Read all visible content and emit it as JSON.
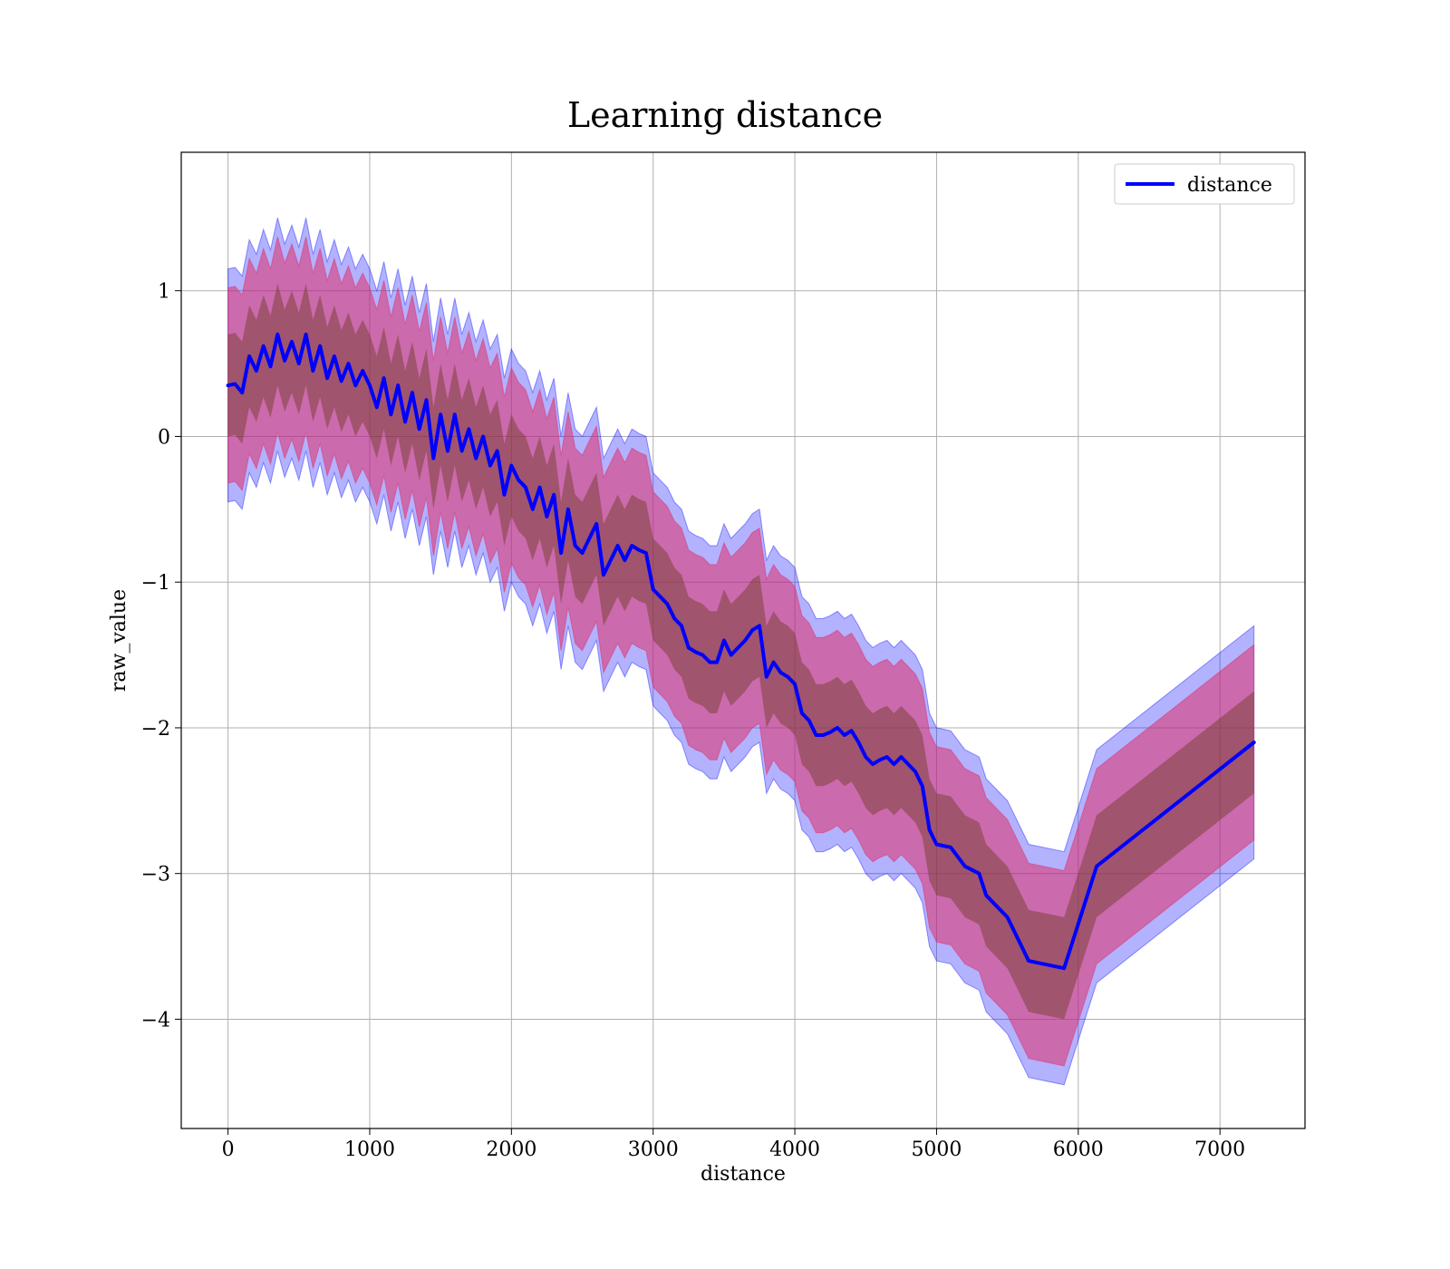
{
  "chart_data": {
    "type": "line",
    "title": "Learning distance",
    "xlabel": "distance",
    "ylabel": "raw_value",
    "xlim": [
      -330,
      7600
    ],
    "ylim": [
      -4.75,
      1.95
    ],
    "x_ticks": [
      0,
      1000,
      2000,
      3000,
      4000,
      5000,
      6000,
      7000
    ],
    "y_ticks": [
      -4,
      -3,
      -2,
      -1,
      0,
      1
    ],
    "x_tick_labels": [
      "0",
      "1000",
      "2000",
      "3000",
      "4000",
      "5000",
      "6000",
      "7000"
    ],
    "y_tick_labels": [
      "−4",
      "−3",
      "−2",
      "−1",
      "0",
      "1"
    ],
    "grid": true,
    "legend": {
      "position": "top-right",
      "entries": [
        "distance"
      ]
    },
    "colors": {
      "line": "#0000ff",
      "outer_band": "#0000ff",
      "middle_band": "#e0306a",
      "inner_band": "#6e3a20",
      "grid": "#b0b0b0"
    },
    "band_widths": {
      "inner": 0.35,
      "middle": 0.67,
      "outer": 0.8
    },
    "series": [
      {
        "name": "distance",
        "x": [
          0,
          50,
          100,
          150,
          200,
          250,
          300,
          350,
          400,
          450,
          500,
          550,
          600,
          650,
          700,
          750,
          800,
          850,
          900,
          950,
          1000,
          1050,
          1100,
          1150,
          1200,
          1250,
          1300,
          1350,
          1400,
          1450,
          1500,
          1550,
          1600,
          1650,
          1700,
          1750,
          1800,
          1850,
          1900,
          1950,
          2000,
          2050,
          2100,
          2150,
          2200,
          2250,
          2300,
          2350,
          2400,
          2450,
          2500,
          2550,
          2600,
          2650,
          2700,
          2750,
          2800,
          2850,
          2900,
          2950,
          3000,
          3050,
          3100,
          3150,
          3200,
          3250,
          3300,
          3350,
          3400,
          3450,
          3500,
          3550,
          3600,
          3650,
          3700,
          3750,
          3800,
          3850,
          3900,
          3950,
          4000,
          4050,
          4100,
          4150,
          4200,
          4250,
          4300,
          4350,
          4400,
          4450,
          4500,
          4550,
          4600,
          4650,
          4700,
          4750,
          4800,
          4850,
          4900,
          4950,
          5000,
          5100,
          5200,
          5300,
          5350,
          5500,
          5650,
          5900,
          6130,
          7240
        ],
        "y": [
          0.35,
          0.36,
          0.3,
          0.55,
          0.45,
          0.62,
          0.48,
          0.7,
          0.52,
          0.65,
          0.5,
          0.7,
          0.45,
          0.62,
          0.4,
          0.55,
          0.38,
          0.5,
          0.35,
          0.45,
          0.35,
          0.2,
          0.4,
          0.15,
          0.35,
          0.1,
          0.3,
          0.05,
          0.25,
          -0.15,
          0.15,
          -0.1,
          0.15,
          -0.1,
          0.05,
          -0.15,
          0.0,
          -0.2,
          -0.1,
          -0.4,
          -0.2,
          -0.3,
          -0.35,
          -0.5,
          -0.35,
          -0.55,
          -0.4,
          -0.8,
          -0.5,
          -0.75,
          -0.8,
          -0.7,
          -0.6,
          -0.95,
          -0.85,
          -0.75,
          -0.85,
          -0.75,
          -0.78,
          -0.8,
          -1.05,
          -1.1,
          -1.15,
          -1.25,
          -1.3,
          -1.45,
          -1.48,
          -1.5,
          -1.55,
          -1.55,
          -1.4,
          -1.5,
          -1.45,
          -1.4,
          -1.33,
          -1.3,
          -1.65,
          -1.55,
          -1.62,
          -1.65,
          -1.7,
          -1.9,
          -1.95,
          -2.05,
          -2.05,
          -2.03,
          -2.0,
          -2.05,
          -2.02,
          -2.1,
          -2.2,
          -2.25,
          -2.22,
          -2.2,
          -2.25,
          -2.2,
          -2.25,
          -2.3,
          -2.4,
          -2.7,
          -2.8,
          -2.82,
          -2.95,
          -3.0,
          -3.15,
          -3.3,
          -3.6,
          -3.65,
          -2.95,
          -2.1
        ]
      }
    ]
  }
}
